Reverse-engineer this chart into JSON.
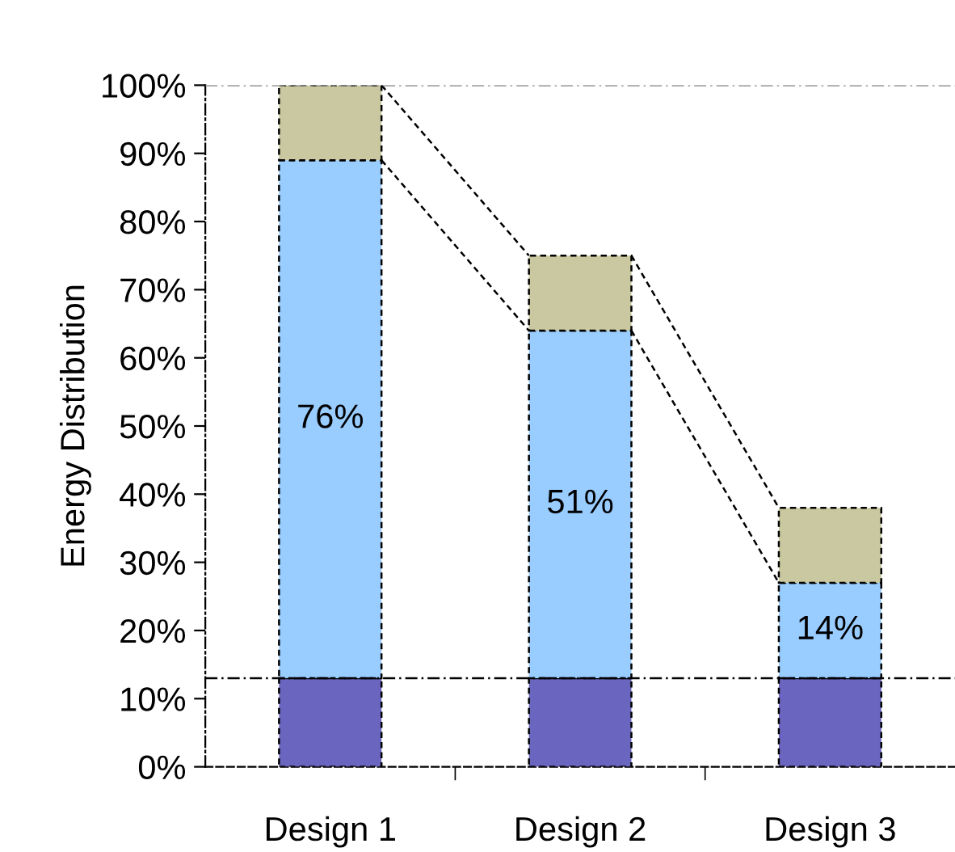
{
  "chart_data": {
    "type": "bar",
    "stacked": true,
    "ylabel": "Energy Distribution",
    "categories": [
      "Design 1",
      "Design 2",
      "Design 3"
    ],
    "series": [
      {
        "color": "#6a66c0",
        "values": [
          13,
          13,
          13
        ]
      },
      {
        "color": "#99ccff",
        "values": [
          76,
          51,
          14
        ],
        "value_labels": [
          "76%",
          "51%",
          "14%"
        ]
      },
      {
        "color": "#c9c8a0",
        "values": [
          11,
          11,
          11
        ]
      }
    ],
    "ylim": [
      0,
      100
    ],
    "yticks": [
      {
        "value": 0,
        "label": "0%"
      },
      {
        "value": 10,
        "label": "10%"
      },
      {
        "value": 20,
        "label": "20%"
      },
      {
        "value": 30,
        "label": "30%"
      },
      {
        "value": 40,
        "label": "40%"
      },
      {
        "value": 50,
        "label": "50%"
      },
      {
        "value": 60,
        "label": "60%"
      },
      {
        "value": 70,
        "label": "70%"
      },
      {
        "value": 80,
        "label": "80%"
      },
      {
        "value": 90,
        "label": "90%"
      },
      {
        "value": 100,
        "label": "100%"
      }
    ],
    "ref_lines": [
      {
        "axis": "y",
        "value": 13,
        "color": "#000000",
        "line_style": "dashdot"
      },
      {
        "axis": "y",
        "value": 100,
        "color": "#808080",
        "line_style": "dashdot"
      }
    ],
    "grid": false,
    "legend": false
  }
}
